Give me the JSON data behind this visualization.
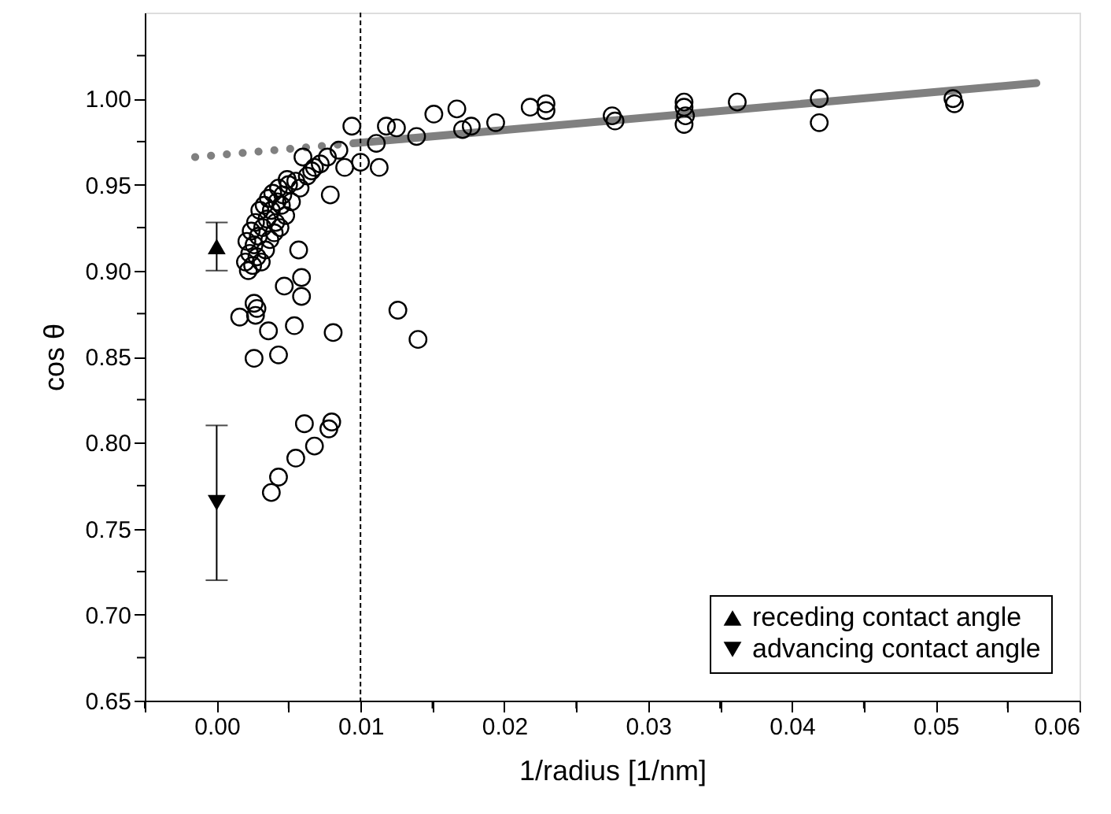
{
  "chart_data": {
    "type": "scatter",
    "xlabel": "1/radius [1/nm]",
    "ylabel": "cos θ",
    "xlim": [
      -0.005,
      0.06
    ],
    "ylim": [
      0.65,
      1.05
    ],
    "xticks": [
      {
        "value": -0.005,
        "label": null
      },
      {
        "value": 0,
        "label": "0.00"
      },
      {
        "value": 0.005,
        "label": null
      },
      {
        "value": 0.01,
        "label": "0.01"
      },
      {
        "value": 0.015,
        "label": null
      },
      {
        "value": 0.02,
        "label": "0.02"
      },
      {
        "value": 0.025,
        "label": null
      },
      {
        "value": 0.03,
        "label": "0.03"
      },
      {
        "value": 0.035,
        "label": null
      },
      {
        "value": 0.04,
        "label": "0.04"
      },
      {
        "value": 0.045,
        "label": null
      },
      {
        "value": 0.05,
        "label": "0.05"
      },
      {
        "value": 0.055,
        "label": null
      },
      {
        "value": 0.06,
        "label": "0.06"
      }
    ],
    "yticks": [
      {
        "value": 0.65,
        "label": "0.65"
      },
      {
        "value": 0.675,
        "label": null
      },
      {
        "value": 0.7,
        "label": "0.70"
      },
      {
        "value": 0.725,
        "label": null
      },
      {
        "value": 0.75,
        "label": "0.75"
      },
      {
        "value": 0.775,
        "label": null
      },
      {
        "value": 0.8,
        "label": "0.80"
      },
      {
        "value": 0.825,
        "label": null
      },
      {
        "value": 0.85,
        "label": "0.85"
      },
      {
        "value": 0.875,
        "label": null
      },
      {
        "value": 0.9,
        "label": "0.90"
      },
      {
        "value": 0.925,
        "label": null
      },
      {
        "value": 0.95,
        "label": "0.95"
      },
      {
        "value": 0.975,
        "label": null
      },
      {
        "value": 1.0,
        "label": "1.00"
      },
      {
        "value": 1.025,
        "label": null
      }
    ],
    "grid": false,
    "legend": "bottom right",
    "ref_lines": [
      {
        "axis": "x",
        "value": 0.01,
        "label": null,
        "color": "#000000",
        "line_style": "dashed"
      }
    ],
    "series": [
      {
        "marker": "circle",
        "color": "#000000",
        "x": [
          0.0094,
          0.0118,
          0.0125,
          0.0151,
          0.0167,
          0.0171,
          0.0177,
          0.0194,
          0.0218,
          0.0229,
          0.0229,
          0.0139,
          0.0113,
          0.01,
          0.0089,
          0.0111,
          0.006,
          0.0077,
          0.0049,
          0.0079,
          0.0068,
          0.0016,
          0.0026,
          0.0027,
          0.0028,
          0.0036,
          0.0026,
          0.0043,
          0.0054,
          0.0047,
          0.0059,
          0.0059,
          0.0057,
          0.0081,
          0.0126,
          0.014,
          0.0061,
          0.008,
          0.0078,
          0.0068,
          0.0055,
          0.0043,
          0.0038,
          0.002,
          0.0021,
          0.0022,
          0.0023,
          0.0024,
          0.0025,
          0.0026,
          0.0027,
          0.0028,
          0.0029,
          0.003,
          0.0031,
          0.0032,
          0.0033,
          0.0034,
          0.0035,
          0.0036,
          0.0037,
          0.0038,
          0.0039,
          0.004,
          0.0041,
          0.0042,
          0.0043,
          0.0044,
          0.0045,
          0.0046,
          0.0048,
          0.005,
          0.0052,
          0.0055,
          0.0058,
          0.0063,
          0.0066,
          0.0072,
          0.0085,
          0.0275,
          0.0277,
          0.0325,
          0.0325,
          0.0325,
          0.0326,
          0.0362,
          0.0419,
          0.0419,
          0.0512,
          0.0513
        ],
        "values": [
          0.984,
          0.984,
          0.983,
          0.991,
          0.994,
          0.982,
          0.984,
          0.986,
          0.995,
          0.997,
          0.993,
          0.978,
          0.96,
          0.963,
          0.96,
          0.974,
          0.966,
          0.966,
          0.953,
          0.944,
          0.96,
          0.873,
          0.881,
          0.874,
          0.878,
          0.865,
          0.849,
          0.851,
          0.868,
          0.891,
          0.896,
          0.885,
          0.912,
          0.864,
          0.877,
          0.86,
          0.811,
          0.812,
          0.808,
          0.798,
          0.791,
          0.78,
          0.771,
          0.905,
          0.917,
          0.9,
          0.91,
          0.923,
          0.903,
          0.915,
          0.928,
          0.908,
          0.92,
          0.935,
          0.905,
          0.925,
          0.938,
          0.912,
          0.93,
          0.942,
          0.918,
          0.935,
          0.945,
          0.922,
          0.928,
          0.94,
          0.948,
          0.925,
          0.938,
          0.944,
          0.932,
          0.95,
          0.94,
          0.952,
          0.948,
          0.955,
          0.958,
          0.962,
          0.97,
          0.99,
          0.987,
          0.998,
          0.995,
          0.985,
          0.99,
          0.998,
          1.0,
          0.986,
          1.0,
          0.997
        ]
      },
      {
        "name": "receding contact angle",
        "marker": "triangle",
        "color": "#000000",
        "x": [
          0.0
        ],
        "values": [
          0.914
        ],
        "errors": [
          0.014
        ]
      },
      {
        "name": "advancing contact angle",
        "marker": "triangle_down",
        "color": "#000000",
        "x": [
          0.0
        ],
        "values": [
          0.765
        ],
        "errors": [
          0.045
        ]
      },
      {
        "type": "line",
        "line_style": "dotted",
        "color": "#808080",
        "x": [
          -0.0015,
          0.0088
        ],
        "values": [
          0.966,
          0.9735
        ]
      },
      {
        "type": "line",
        "line_style": "solid",
        "color": "#808080",
        "x": [
          0.0095,
          0.057
        ],
        "values": [
          0.974,
          1.009
        ]
      }
    ]
  }
}
